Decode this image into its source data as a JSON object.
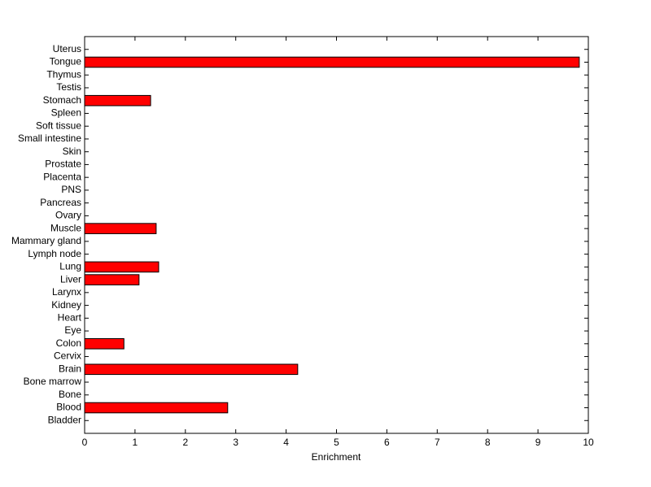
{
  "chart_data": {
    "type": "bar",
    "orientation": "horizontal",
    "x_label": "Enrichment",
    "categories": [
      "Bladder",
      "Blood",
      "Bone",
      "Bone marrow",
      "Brain",
      "Cervix",
      "Colon",
      "Eye",
      "Heart",
      "Kidney",
      "Larynx",
      "Liver",
      "Lung",
      "Lymph node",
      "Mammary gland",
      "Muscle",
      "Ovary",
      "Pancreas",
      "PNS",
      "Placenta",
      "Prostate",
      "Skin",
      "Small intestine",
      "Soft tissue",
      "Spleen",
      "Stomach",
      "Testis",
      "Thymus",
      "Tongue",
      "Uterus"
    ],
    "values": [
      0,
      2.84,
      0,
      0,
      4.23,
      0,
      0.78,
      0,
      0,
      0,
      0,
      1.08,
      1.47,
      0,
      0,
      1.42,
      0,
      0,
      0,
      0,
      0,
      0,
      0,
      0,
      0,
      1.31,
      0,
      0,
      9.82,
      0
    ],
    "color": "#ff0000",
    "xlim": [
      0,
      10
    ],
    "xticks": [
      0,
      1,
      2,
      3,
      4,
      5,
      6,
      7,
      8,
      9,
      10
    ]
  }
}
